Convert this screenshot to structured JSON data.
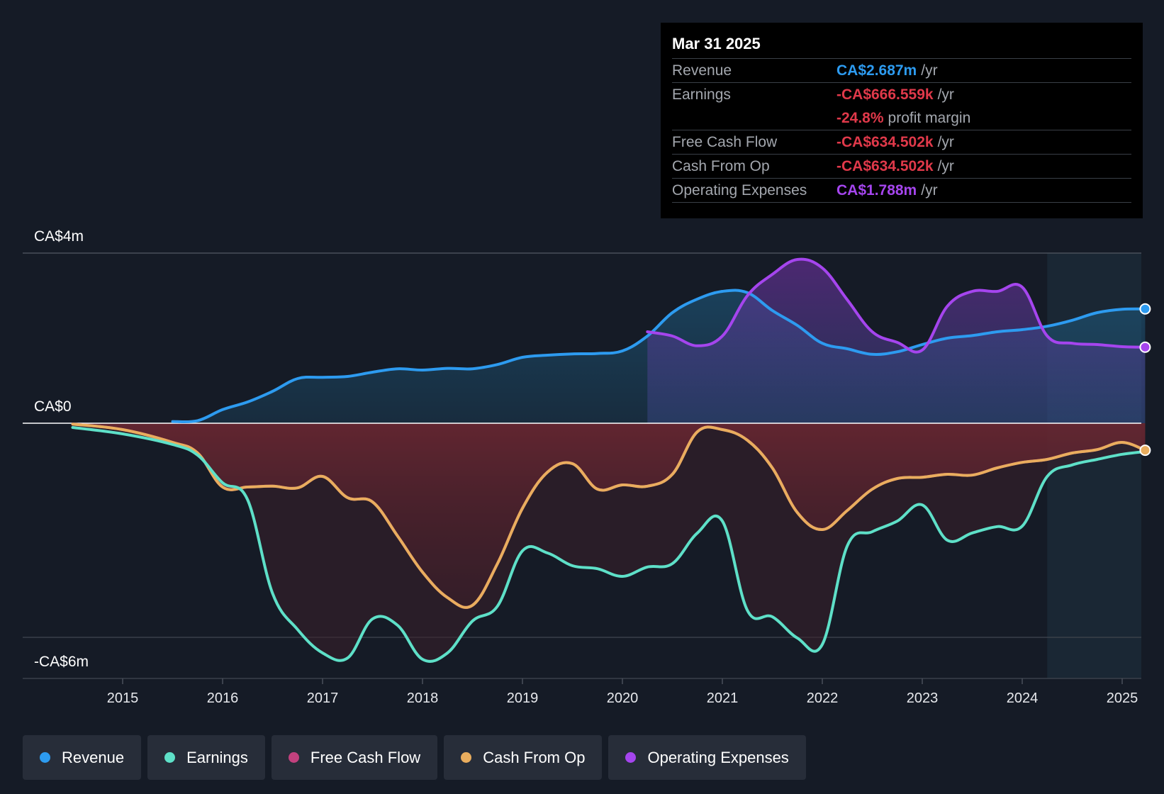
{
  "tooltip": {
    "date": "Mar 31 2025",
    "rows": {
      "revenue": {
        "label": "Revenue",
        "value": "CA$2.687m",
        "unit": "/yr"
      },
      "earnings": {
        "label": "Earnings",
        "value": "-CA$666.559k",
        "unit": "/yr"
      },
      "margin": {
        "value": "-24.8%",
        "unit": "profit margin"
      },
      "fcf": {
        "label": "Free Cash Flow",
        "value": "-CA$634.502k",
        "unit": "/yr"
      },
      "cfo": {
        "label": "Cash From Op",
        "value": "-CA$634.502k",
        "unit": "/yr"
      },
      "opex": {
        "label": "Operating Expenses",
        "value": "CA$1.788m",
        "unit": "/yr"
      }
    }
  },
  "legend": {
    "revenue": "Revenue",
    "earnings": "Earnings",
    "fcf": "Free Cash Flow",
    "cfo": "Cash From Op",
    "opex": "Operating Expenses"
  },
  "colors": {
    "revenue": "#2d9bf0",
    "earnings": "#5ee0c8",
    "fcf": "#c2417e",
    "cfo": "#e9ad5e",
    "opex": "#a545ee",
    "negative": "#e0394a"
  },
  "chart_data": {
    "type": "line",
    "title": "",
    "y_axis_labels": {
      "top": "CA$4m",
      "zero": "CA$0",
      "bottom": "-CA$6m"
    },
    "ylim": [
      -6,
      4
    ],
    "xlim": [
      2014.0,
      2025.23
    ],
    "x_ticks": [
      "2015",
      "2016",
      "2017",
      "2018",
      "2019",
      "2020",
      "2021",
      "2022",
      "2023",
      "2024",
      "2025"
    ],
    "forecast_start": 2024.25,
    "series": [
      {
        "name": "Revenue",
        "key": "revenue",
        "points": [
          [
            2015.5,
            0.04
          ],
          [
            2015.75,
            0.06
          ],
          [
            2016,
            0.32
          ],
          [
            2016.25,
            0.5
          ],
          [
            2016.5,
            0.75
          ],
          [
            2016.75,
            1.05
          ],
          [
            2017,
            1.08
          ],
          [
            2017.25,
            1.1
          ],
          [
            2017.5,
            1.2
          ],
          [
            2017.75,
            1.28
          ],
          [
            2018,
            1.25
          ],
          [
            2018.25,
            1.29
          ],
          [
            2018.5,
            1.28
          ],
          [
            2018.75,
            1.38
          ],
          [
            2019,
            1.55
          ],
          [
            2019.25,
            1.6
          ],
          [
            2019.5,
            1.63
          ],
          [
            2019.75,
            1.64
          ],
          [
            2020,
            1.7
          ],
          [
            2020.25,
            2.05
          ],
          [
            2020.5,
            2.6
          ],
          [
            2020.75,
            2.92
          ],
          [
            2021,
            3.1
          ],
          [
            2021.25,
            3.07
          ],
          [
            2021.5,
            2.65
          ],
          [
            2021.75,
            2.3
          ],
          [
            2022,
            1.88
          ],
          [
            2022.25,
            1.75
          ],
          [
            2022.5,
            1.62
          ],
          [
            2022.75,
            1.68
          ],
          [
            2023,
            1.85
          ],
          [
            2023.25,
            2.0
          ],
          [
            2023.5,
            2.06
          ],
          [
            2023.75,
            2.15
          ],
          [
            2024,
            2.2
          ],
          [
            2024.25,
            2.28
          ],
          [
            2024.5,
            2.42
          ],
          [
            2024.75,
            2.6
          ],
          [
            2025,
            2.68
          ],
          [
            2025.23,
            2.687
          ]
        ]
      },
      {
        "name": "Earnings",
        "key": "earnings",
        "points": [
          [
            2014.5,
            -0.1
          ],
          [
            2015,
            -0.25
          ],
          [
            2015.5,
            -0.5
          ],
          [
            2015.75,
            -0.75
          ],
          [
            2016,
            -1.4
          ],
          [
            2016.25,
            -1.8
          ],
          [
            2016.5,
            -4.0
          ],
          [
            2016.75,
            -4.85
          ],
          [
            2017,
            -5.4
          ],
          [
            2017.25,
            -5.52
          ],
          [
            2017.5,
            -4.6
          ],
          [
            2017.75,
            -4.75
          ],
          [
            2018,
            -5.55
          ],
          [
            2018.25,
            -5.4
          ],
          [
            2018.5,
            -4.65
          ],
          [
            2018.75,
            -4.3
          ],
          [
            2019,
            -3.0
          ],
          [
            2019.25,
            -3.05
          ],
          [
            2019.5,
            -3.35
          ],
          [
            2019.75,
            -3.42
          ],
          [
            2020,
            -3.6
          ],
          [
            2020.25,
            -3.38
          ],
          [
            2020.5,
            -3.3
          ],
          [
            2020.75,
            -2.58
          ],
          [
            2021,
            -2.3
          ],
          [
            2021.25,
            -4.4
          ],
          [
            2021.5,
            -4.55
          ],
          [
            2021.75,
            -5.05
          ],
          [
            2022,
            -5.2
          ],
          [
            2022.25,
            -2.88
          ],
          [
            2022.5,
            -2.55
          ],
          [
            2022.75,
            -2.3
          ],
          [
            2023,
            -1.92
          ],
          [
            2023.25,
            -2.75
          ],
          [
            2023.5,
            -2.58
          ],
          [
            2023.75,
            -2.43
          ],
          [
            2024,
            -2.42
          ],
          [
            2024.25,
            -1.25
          ],
          [
            2024.5,
            -0.98
          ],
          [
            2024.75,
            -0.85
          ],
          [
            2025,
            -0.73
          ],
          [
            2025.23,
            -0.667
          ]
        ]
      },
      {
        "name": "Cash From Op",
        "key": "cfo",
        "points": [
          [
            2014.5,
            -0.02
          ],
          [
            2015,
            -0.15
          ],
          [
            2015.5,
            -0.45
          ],
          [
            2015.75,
            -0.7
          ],
          [
            2016,
            -1.5
          ],
          [
            2016.25,
            -1.5
          ],
          [
            2016.5,
            -1.48
          ],
          [
            2016.75,
            -1.52
          ],
          [
            2017,
            -1.25
          ],
          [
            2017.25,
            -1.75
          ],
          [
            2017.5,
            -1.85
          ],
          [
            2017.75,
            -2.65
          ],
          [
            2018,
            -3.5
          ],
          [
            2018.25,
            -4.1
          ],
          [
            2018.5,
            -4.28
          ],
          [
            2018.75,
            -3.3
          ],
          [
            2019,
            -2.0
          ],
          [
            2019.25,
            -1.15
          ],
          [
            2019.5,
            -0.95
          ],
          [
            2019.75,
            -1.55
          ],
          [
            2020,
            -1.45
          ],
          [
            2020.25,
            -1.48
          ],
          [
            2020.5,
            -1.2
          ],
          [
            2020.75,
            -0.2
          ],
          [
            2021,
            -0.15
          ],
          [
            2021.25,
            -0.4
          ],
          [
            2021.5,
            -1.05
          ],
          [
            2021.75,
            -2.1
          ],
          [
            2022,
            -2.5
          ],
          [
            2022.25,
            -2.05
          ],
          [
            2022.5,
            -1.55
          ],
          [
            2022.75,
            -1.3
          ],
          [
            2023,
            -1.27
          ],
          [
            2023.25,
            -1.2
          ],
          [
            2023.5,
            -1.22
          ],
          [
            2023.75,
            -1.05
          ],
          [
            2024,
            -0.92
          ],
          [
            2024.25,
            -0.85
          ],
          [
            2024.5,
            -0.7
          ],
          [
            2024.75,
            -0.62
          ],
          [
            2025,
            -0.45
          ],
          [
            2025.23,
            -0.635
          ]
        ]
      },
      {
        "name": "Free Cash Flow",
        "key": "fcf",
        "points": [
          [
            2014.5,
            -0.02
          ],
          [
            2015,
            -0.15
          ],
          [
            2015.5,
            -0.45
          ],
          [
            2015.75,
            -0.7
          ],
          [
            2016,
            -1.5
          ],
          [
            2016.25,
            -1.5
          ],
          [
            2016.5,
            -1.48
          ],
          [
            2016.75,
            -1.52
          ],
          [
            2017,
            -1.25
          ],
          [
            2017.25,
            -1.75
          ],
          [
            2017.5,
            -1.85
          ],
          [
            2017.75,
            -2.65
          ],
          [
            2018,
            -3.5
          ],
          [
            2018.25,
            -4.1
          ],
          [
            2018.5,
            -4.28
          ],
          [
            2018.75,
            -3.3
          ],
          [
            2019,
            -2.0
          ],
          [
            2019.25,
            -1.15
          ],
          [
            2019.5,
            -0.95
          ],
          [
            2019.75,
            -1.55
          ],
          [
            2020,
            -1.45
          ],
          [
            2020.25,
            -1.48
          ],
          [
            2020.5,
            -1.2
          ],
          [
            2020.75,
            -0.2
          ],
          [
            2021,
            -0.15
          ],
          [
            2021.25,
            -0.4
          ],
          [
            2021.5,
            -1.05
          ],
          [
            2021.75,
            -2.1
          ],
          [
            2022,
            -2.5
          ],
          [
            2022.25,
            -2.05
          ],
          [
            2022.5,
            -1.55
          ],
          [
            2022.75,
            -1.3
          ],
          [
            2023,
            -1.27
          ],
          [
            2023.25,
            -1.2
          ],
          [
            2023.5,
            -1.22
          ],
          [
            2023.75,
            -1.05
          ],
          [
            2024,
            -0.92
          ],
          [
            2024.25,
            -0.85
          ],
          [
            2024.5,
            -0.7
          ],
          [
            2024.75,
            -0.62
          ],
          [
            2025,
            -0.45
          ],
          [
            2025.23,
            -0.635
          ]
        ]
      },
      {
        "name": "Operating Expenses",
        "key": "opex",
        "points": [
          [
            2020.25,
            2.15
          ],
          [
            2020.5,
            2.05
          ],
          [
            2020.75,
            1.82
          ],
          [
            2021,
            2.05
          ],
          [
            2021.25,
            3.0
          ],
          [
            2021.5,
            3.5
          ],
          [
            2021.75,
            3.85
          ],
          [
            2022,
            3.65
          ],
          [
            2022.25,
            2.9
          ],
          [
            2022.5,
            2.15
          ],
          [
            2022.75,
            1.9
          ],
          [
            2023,
            1.72
          ],
          [
            2023.25,
            2.75
          ],
          [
            2023.5,
            3.1
          ],
          [
            2023.75,
            3.1
          ],
          [
            2024,
            3.2
          ],
          [
            2024.25,
            2.05
          ],
          [
            2024.5,
            1.88
          ],
          [
            2024.75,
            1.85
          ],
          [
            2025,
            1.8
          ],
          [
            2025.23,
            1.788
          ]
        ]
      }
    ]
  }
}
